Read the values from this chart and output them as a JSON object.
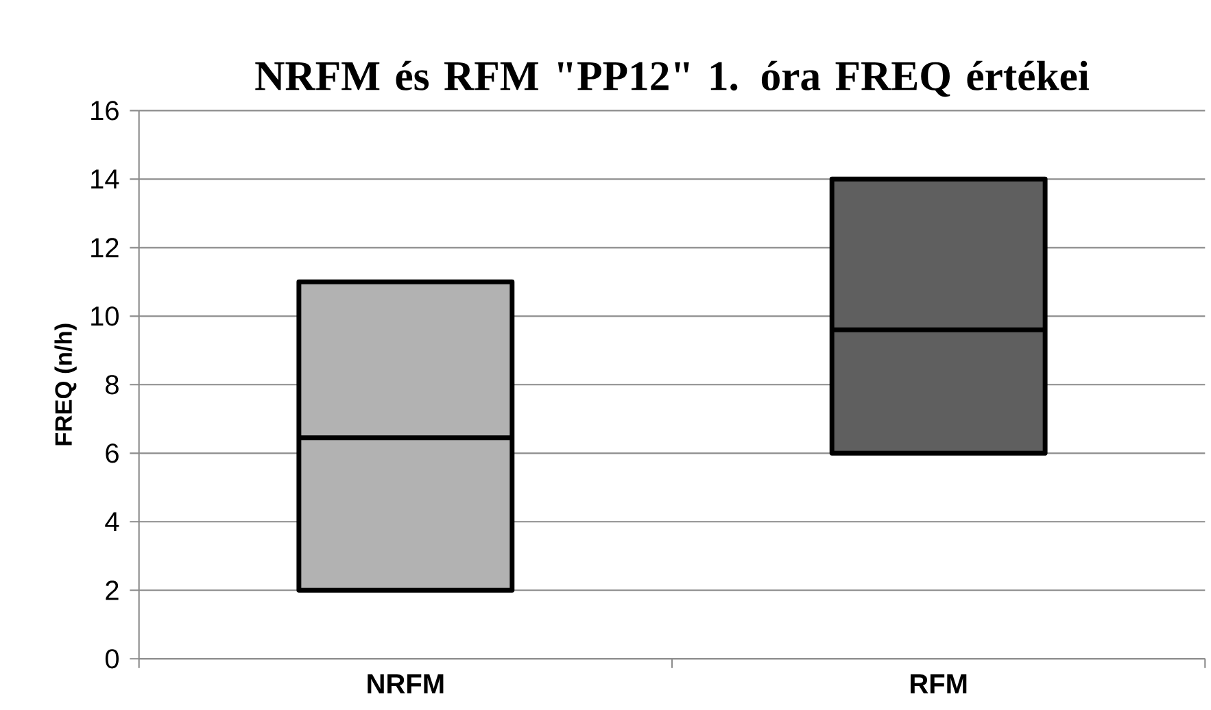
{
  "chart_data": {
    "type": "box",
    "title": "NRFM és RFM \"PP12\" 1. óra FREQ értékei",
    "ylabel": "FREQ (n/h)",
    "categories": [
      "NRFM",
      "RFM"
    ],
    "boxes": [
      {
        "q1": 2,
        "median": 6.45,
        "q3": 11
      },
      {
        "q1": 6,
        "median": 9.6,
        "q3": 14
      }
    ],
    "colors": [
      "#b2b2b2",
      "#5f5f5f"
    ],
    "ylim": [
      0,
      16
    ],
    "yticks": [
      0,
      2,
      4,
      6,
      8,
      10,
      12,
      14,
      16
    ],
    "grid": "y"
  }
}
